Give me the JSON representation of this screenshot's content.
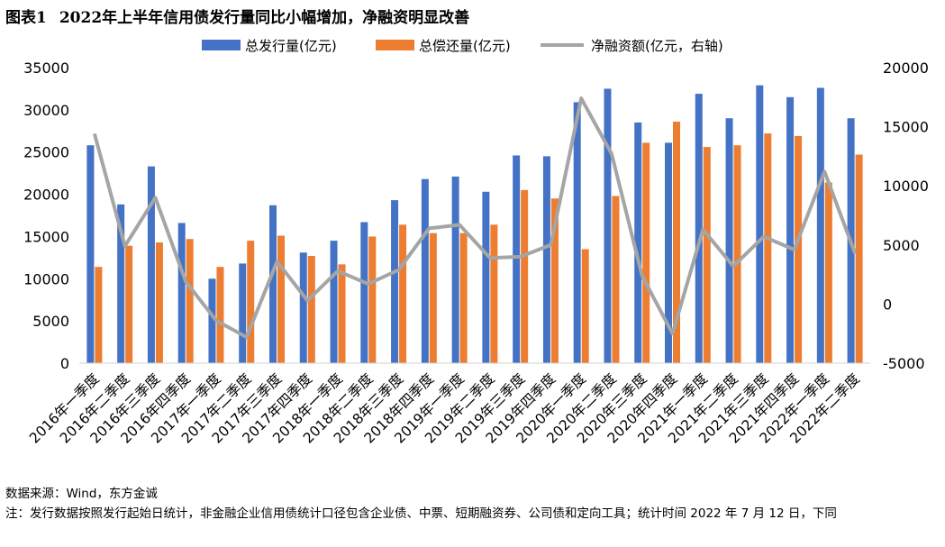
{
  "header": {
    "figure_label": "图表1",
    "title": "2022年上半年信用债发行量同比小幅增加，净融资明显改善"
  },
  "chart_data": {
    "type": "bar",
    "categories": [
      "2016年一季度",
      "2016年二季度",
      "2016年三季度",
      "2016年四季度",
      "2017年一季度",
      "2017年二季度",
      "2017年三季度",
      "2017年四季度",
      "2018年一季度",
      "2018年二季度",
      "2018年三季度",
      "2018年四季度",
      "2019年一季度",
      "2019年二季度",
      "2019年三季度",
      "2019年四季度",
      "2020年一季度",
      "2020年二季度",
      "2020年三季度",
      "2020年四季度",
      "2021年一季度",
      "2021年二季度",
      "2021年三季度",
      "2021年四季度",
      "2022年一季度",
      "2022年二季度"
    ],
    "series": [
      {
        "name": "总发行量(亿元)",
        "type": "bar",
        "axis": "left",
        "color": "#4472C4",
        "values": [
          25800,
          18800,
          23300,
          16600,
          10000,
          11800,
          18700,
          13100,
          14500,
          16700,
          19300,
          21800,
          22100,
          20300,
          24600,
          24500,
          30900,
          32500,
          28500,
          26100,
          31900,
          29000,
          32900,
          31500,
          32600,
          29000
        ]
      },
      {
        "name": "总偿还量(亿元)",
        "type": "bar",
        "axis": "left",
        "color": "#ED7D31",
        "values": [
          11400,
          13900,
          14300,
          14700,
          11400,
          14500,
          15100,
          12700,
          11700,
          15000,
          16400,
          15400,
          15400,
          16400,
          20500,
          19500,
          13500,
          19800,
          26100,
          28600,
          25600,
          25800,
          27200,
          26900,
          21400,
          24700
        ]
      },
      {
        "name": "净融资额(亿元，右轴)",
        "type": "line",
        "axis": "right",
        "color": "#A5A5A5",
        "values": [
          14400,
          4900,
          9000,
          1900,
          -1400,
          -2800,
          3600,
          300,
          2800,
          1700,
          2900,
          6400,
          6700,
          3900,
          4000,
          5000,
          17400,
          12700,
          2400,
          -2500,
          6300,
          3200,
          5700,
          4600,
          11200,
          4300
        ]
      }
    ],
    "y_left": {
      "min": 0,
      "max": 35000,
      "ticks": [
        0,
        5000,
        10000,
        15000,
        20000,
        25000,
        30000,
        35000
      ]
    },
    "y_right": {
      "min": -5000,
      "max": 20000,
      "ticks": [
        -5000,
        0,
        5000,
        10000,
        15000,
        20000
      ]
    },
    "legend_position": "top",
    "grid": false
  },
  "footer": {
    "source": "数据来源：Wind，东方金诚",
    "note": "注：发行数据按照发行起始日统计，非金融企业信用债统计口径包含企业债、中票、短期融资券、公司债和定向工具；统计时间 2022 年 7 月 12 日，下同"
  }
}
